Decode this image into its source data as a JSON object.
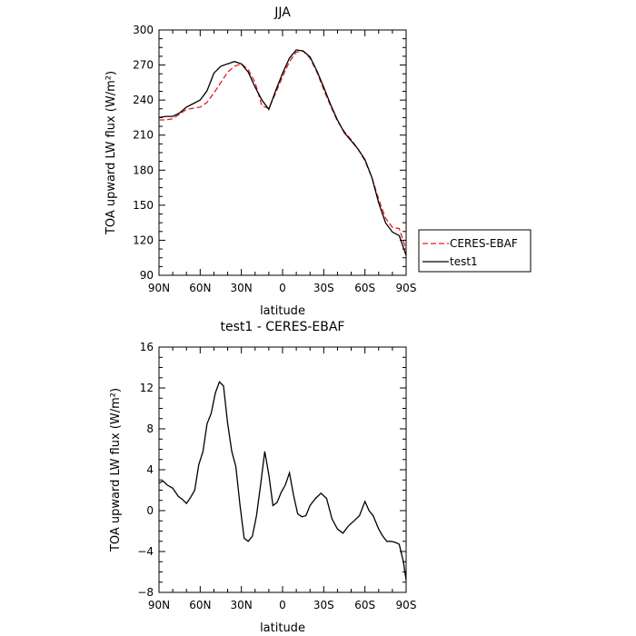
{
  "chart_data": [
    {
      "type": "line",
      "title": "JJA",
      "xlabel": "latitude",
      "ylabel": "TOA upward LW flux (W/m²)",
      "xlim": [
        90,
        -90
      ],
      "ylim": [
        90,
        300
      ],
      "xticks": [
        90,
        60,
        30,
        0,
        -30,
        -60,
        -90
      ],
      "xtick_labels": [
        "90N",
        "60N",
        "30N",
        "0",
        "30S",
        "60S",
        "90S"
      ],
      "yticks": [
        90,
        120,
        150,
        180,
        210,
        240,
        270,
        300
      ],
      "ytick_labels": [
        "90",
        "120",
        "150",
        "180",
        "210",
        "240",
        "270",
        "300"
      ],
      "legend_position": "right, outside plot",
      "series": [
        {
          "name": "CERES-EBAF",
          "color": "#e8191c",
          "dash": "dashed",
          "x": [
            90,
            85,
            80,
            75,
            70,
            65,
            60,
            55,
            50,
            45,
            40,
            35,
            30,
            25,
            20,
            15,
            10,
            5,
            0,
            -5,
            -10,
            -15,
            -20,
            -25,
            -30,
            -35,
            -40,
            -45,
            -50,
            -55,
            -60,
            -65,
            -70,
            -75,
            -80,
            -85,
            -90
          ],
          "y": [
            223,
            223,
            224,
            228,
            232,
            233,
            234,
            238,
            246,
            255,
            264,
            269,
            271,
            266,
            255,
            235,
            233,
            246,
            260,
            273,
            281,
            282,
            276,
            264,
            249,
            235,
            222,
            213,
            206,
            198,
            188,
            174,
            155,
            139,
            131,
            130,
            112
          ]
        },
        {
          "name": "test1",
          "color": "#000000",
          "dash": "solid",
          "x": [
            90,
            85,
            80,
            75,
            70,
            65,
            60,
            55,
            50,
            45,
            40,
            35,
            30,
            25,
            20,
            15,
            10,
            5,
            0,
            -5,
            -10,
            -15,
            -20,
            -25,
            -30,
            -35,
            -40,
            -45,
            -50,
            -55,
            -60,
            -65,
            -70,
            -75,
            -80,
            -85,
            -90
          ],
          "y": [
            225,
            226,
            226,
            229,
            234,
            237,
            240,
            248,
            263,
            269,
            271,
            273,
            271,
            264,
            251,
            240,
            232,
            248,
            263,
            276,
            283,
            282,
            277,
            265,
            251,
            236,
            223,
            212,
            205,
            198,
            189,
            174,
            152,
            135,
            127,
            124,
            107
          ]
        }
      ]
    },
    {
      "type": "line",
      "title": "test1 - CERES-EBAF",
      "xlabel": "latitude",
      "ylabel": "TOA upward LW flux (W/m²)",
      "xlim": [
        90,
        -90
      ],
      "ylim": [
        -8,
        16
      ],
      "xticks": [
        90,
        60,
        30,
        0,
        -30,
        -60,
        -90
      ],
      "xtick_labels": [
        "90N",
        "60N",
        "30N",
        "0",
        "30S",
        "60S",
        "90S"
      ],
      "yticks": [
        -8,
        -4,
        0,
        4,
        8,
        12,
        16
      ],
      "ytick_labels": [
        "−8",
        "−4",
        "0",
        "4",
        "8",
        "12",
        "16"
      ],
      "series": [
        {
          "color": "#000000",
          "dash": "solid",
          "x": [
            90,
            87,
            84,
            80,
            76,
            73,
            70,
            67,
            64,
            61,
            58,
            55,
            52,
            49,
            46,
            43,
            40,
            37,
            34,
            31,
            28,
            25,
            22,
            19,
            16,
            13,
            10,
            7,
            4,
            1,
            -2,
            -5,
            -8,
            -11,
            -14,
            -17,
            -20,
            -24,
            -28,
            -32,
            -36,
            -40,
            -44,
            -48,
            -52,
            -56,
            -60,
            -63,
            -66,
            -70,
            -73,
            -76,
            -79,
            -82,
            -85,
            -88,
            -90
          ],
          "y": [
            2.7,
            2.9,
            2.5,
            2.2,
            1.4,
            1.1,
            0.7,
            1.3,
            2.0,
            4.5,
            5.8,
            8.5,
            9.5,
            11.5,
            12.6,
            12.2,
            8.5,
            5.8,
            4.3,
            0.5,
            -2.7,
            -3.0,
            -2.5,
            -0.5,
            2.5,
            5.8,
            3.5,
            0.5,
            0.8,
            1.8,
            2.5,
            3.7,
            1.5,
            -0.3,
            -0.6,
            -0.5,
            0.5,
            1.2,
            1.7,
            1.2,
            -0.8,
            -1.8,
            -2.2,
            -1.5,
            -1.0,
            -0.5,
            0.9,
            0.0,
            -0.5,
            -1.8,
            -2.5,
            -3.0,
            -3.0,
            -3.1,
            -3.3,
            -5.0,
            -6.8
          ]
        }
      ]
    }
  ]
}
